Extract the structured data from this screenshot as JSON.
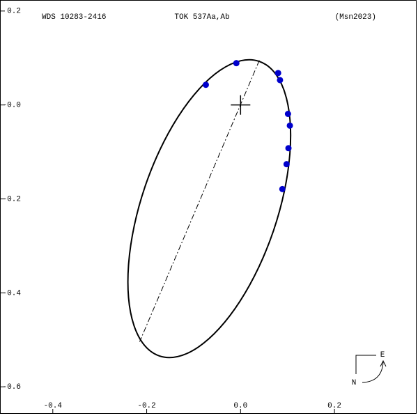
{
  "chart_data": {
    "type": "scatter",
    "title": "TOK 537Aa,Ab",
    "wds_id": "WDS 10283-2416",
    "reference": "(Msn2023)",
    "xlim": [
      -0.511,
      0.375
    ],
    "ylim": [
      -0.656,
      0.222
    ],
    "xticks": [
      -0.4,
      -0.2,
      {
        "value": 0,
        "label": "0.0"
      },
      0.2
    ],
    "yticks": [
      0.2,
      {
        "value": 0,
        "label": "-0.0"
      },
      -0.2,
      -0.4,
      -0.6
    ],
    "primary": {
      "x": 0,
      "y": 0
    },
    "points": {
      "color": "#0000cc",
      "x": [
        -0.074,
        -0.009,
        0.08,
        0.084,
        0.101,
        0.105,
        0.102,
        0.098,
        0.089
      ],
      "y": [
        0.043,
        0.089,
        0.068,
        0.053,
        -0.019,
        -0.044,
        -0.092,
        -0.126,
        -0.179
      ]
    },
    "orbit": {
      "color": "#000000",
      "x": [
        0.0395,
        0.0714,
        0.0938,
        0.1053,
        0.105,
        0.0931,
        0.0703,
        0.0381,
        -0.0012,
        -0.0449,
        -0.0902,
        -0.1338,
        -0.1729,
        -0.2048,
        -0.2272,
        -0.2387,
        -0.2384,
        -0.2265,
        -0.2037,
        -0.1715,
        -0.1322,
        -0.0885,
        -0.0432,
        0.0004
      ],
      "y": [
        0.0929,
        0.0702,
        0.0277,
        -0.0318,
        -0.1041,
        -0.1843,
        -0.2671,
        -0.3467,
        -0.4177,
        -0.4752,
        -0.5155,
        -0.5356,
        -0.5343,
        -0.5116,
        -0.4691,
        -0.4096,
        -0.3373,
        -0.2571,
        -0.1743,
        -0.0947,
        -0.0237,
        0.0338,
        0.0741,
        0.0942
      ]
    },
    "line_of_nodes": {
      "x": [
        0.04,
        -0.215
      ],
      "y": [
        0.095,
        -0.504
      ]
    },
    "compass": {
      "east": "E",
      "north": "N"
    }
  }
}
